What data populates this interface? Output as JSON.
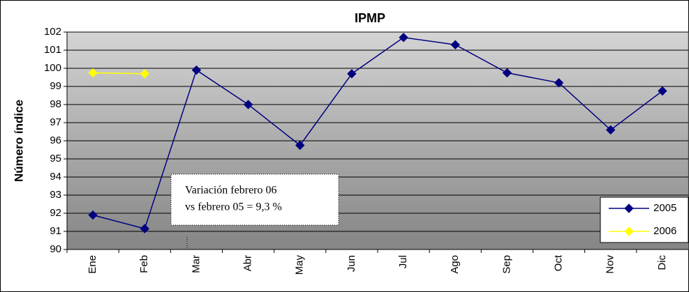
{
  "chart_data": {
    "type": "line",
    "title": "IPMP",
    "y_label": "Número índice",
    "categories": [
      "Ene",
      "Feb",
      "Mar",
      "Abr",
      "May",
      "Jun",
      "Jul",
      "Ago",
      "Sep",
      "Oct",
      "Nov",
      "Dic"
    ],
    "series": [
      {
        "name": "2005",
        "color": "#000080",
        "values": [
          91.9,
          91.15,
          99.9,
          98.0,
          95.75,
          99.7,
          101.7,
          101.3,
          99.75,
          99.2,
          96.6,
          98.75
        ]
      },
      {
        "name": "2006",
        "color": "#ffff00",
        "values": [
          99.75,
          99.7,
          null,
          null,
          null,
          null,
          null,
          null,
          null,
          null,
          null,
          null
        ]
      }
    ],
    "ylim": [
      90,
      102
    ],
    "yticks": [
      90,
      91,
      92,
      93,
      94,
      95,
      96,
      97,
      98,
      99,
      100,
      101,
      102
    ],
    "grid": true,
    "legend": "right",
    "annotation": [
      "Variación  febrero 06",
      "vs febrero 05 = 9,3 %"
    ]
  }
}
